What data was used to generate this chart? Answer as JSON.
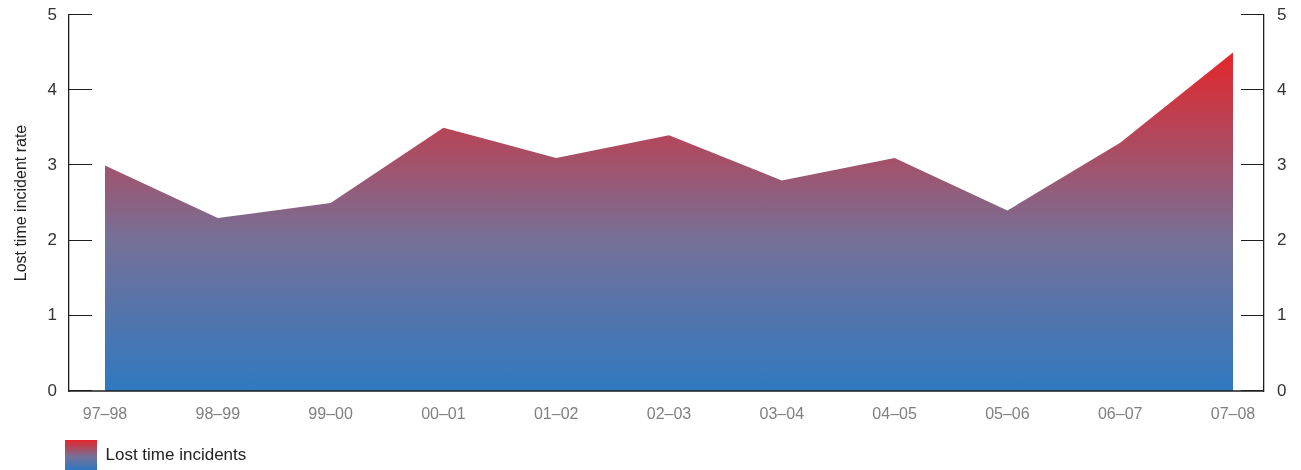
{
  "chart_data": {
    "type": "area",
    "categories": [
      "97–98",
      "98–99",
      "99–00",
      "00–01",
      "01–02",
      "02–03",
      "03–04",
      "04–05",
      "05–06",
      "06–07",
      "07–08"
    ],
    "series": [
      {
        "name": "Lost time incidents",
        "color": "#2f79c1",
        "values": [
          3.0,
          2.3,
          2.5,
          3.5,
          3.1,
          3.4,
          2.8,
          3.1,
          2.4,
          3.3,
          4.5
        ]
      }
    ],
    "ylabel": "Lost time incident rate",
    "ylim": [
      0,
      5
    ],
    "yticks": [
      0,
      1,
      2,
      3,
      4,
      5
    ],
    "y2lim": [
      0,
      5
    ],
    "y2ticks": [
      0,
      1,
      2,
      3,
      4,
      5
    ],
    "legend": "bottom left"
  }
}
